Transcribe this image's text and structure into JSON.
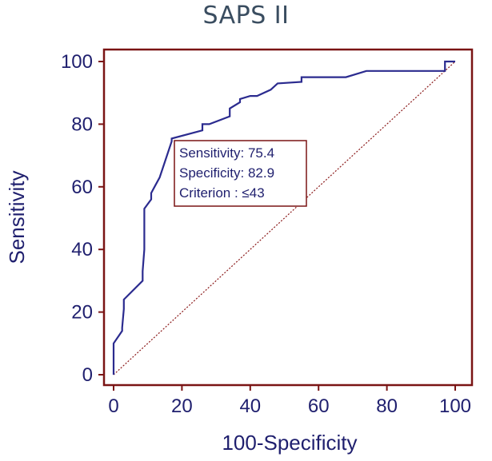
{
  "chart_data": {
    "type": "line",
    "title": "SAPS II",
    "xlabel": "100-Specificity",
    "ylabel": "Sensitivity",
    "xlim": [
      0,
      100
    ],
    "ylim": [
      0,
      100
    ],
    "xticks": [
      0,
      20,
      40,
      60,
      80,
      100
    ],
    "yticks": [
      0,
      20,
      40,
      60,
      80,
      100
    ],
    "grid": false,
    "colors": {
      "roc": "#2b2b8f",
      "reference": "#8b1a1a",
      "frame": "#7a1414"
    },
    "series": [
      {
        "x": [
          0,
          0,
          0,
          0,
          2.5,
          2.5,
          3,
          3,
          8.5,
          8.5,
          9,
          9,
          11,
          11,
          12,
          13.5,
          17,
          17,
          26,
          26,
          28,
          34,
          34,
          37,
          37,
          40,
          41,
          42,
          46,
          48,
          55,
          55,
          63,
          68,
          74,
          97,
          97,
          100
        ],
        "y": [
          0,
          4,
          9,
          10,
          14,
          15,
          21,
          24,
          30,
          33,
          40,
          53,
          56,
          58,
          60,
          63,
          74.5,
          75.4,
          78,
          80,
          80,
          82.5,
          85,
          87,
          88,
          89,
          89,
          89,
          91,
          93,
          93.5,
          95,
          95,
          95,
          97,
          97,
          100,
          100
        ]
      },
      {
        "x": [
          0,
          100
        ],
        "y": [
          0,
          100
        ]
      }
    ],
    "annotation": {
      "lines": [
        "Sensitivity: 75.4",
        "Specificity: 82.9",
        "Criterion : ≤43"
      ],
      "point": {
        "x": 17,
        "y": 75.4
      }
    }
  }
}
